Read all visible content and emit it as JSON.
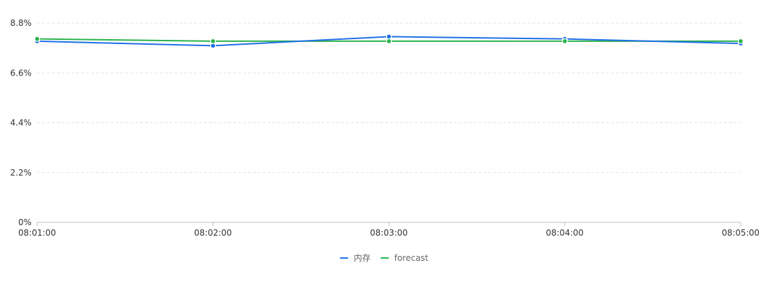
{
  "chart_data": {
    "type": "line",
    "title": "",
    "xlabel": "",
    "ylabel": "",
    "x": [
      "08:01:00",
      "08:02:00",
      "08:03:00",
      "08:04:00",
      "08:05:00"
    ],
    "x_tick_labels": [
      "08:01:00",
      "08:02:00",
      "08:03:00",
      "08:04:00",
      "08:05:00"
    ],
    "ylim": [
      0,
      8.8
    ],
    "y_ticks": [
      0,
      2.2,
      4.4,
      6.6,
      8.8
    ],
    "y_tick_labels": [
      "0%",
      "2.2%",
      "4.4%",
      "6.6%",
      "8.8%"
    ],
    "y_unit": "%",
    "grid": "horizontal dashed",
    "legend_position": "bottom-center",
    "series": [
      {
        "name": "内存",
        "color": "#1f6fe5",
        "values": [
          8.0,
          7.8,
          8.2,
          8.1,
          7.9
        ]
      },
      {
        "name": "forecast",
        "color": "#2bb24c",
        "values": [
          8.1,
          8.0,
          8.0,
          8.0,
          8.0
        ]
      }
    ]
  }
}
